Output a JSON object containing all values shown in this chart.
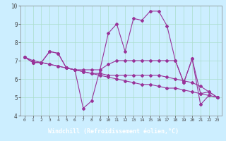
{
  "xlabel": "Windchill (Refroidissement éolien,°C)",
  "background_color": "#cceeff",
  "grid_color": "#aaddcc",
  "line_color": "#993399",
  "label_bg_color": "#7744aa",
  "xlim_min": -0.5,
  "xlim_max": 23.5,
  "ylim_min": 4,
  "ylim_max": 10,
  "yticks": [
    4,
    5,
    6,
    7,
    8,
    9,
    10
  ],
  "xticks": [
    0,
    1,
    2,
    3,
    4,
    5,
    6,
    7,
    8,
    9,
    10,
    11,
    12,
    13,
    14,
    15,
    16,
    17,
    18,
    19,
    20,
    21,
    22,
    23
  ],
  "series": [
    [
      7.2,
      6.9,
      6.9,
      7.5,
      7.4,
      6.6,
      6.5,
      4.4,
      4.8,
      6.5,
      8.5,
      9.0,
      7.5,
      9.3,
      9.2,
      9.7,
      9.7,
      8.9,
      7.0,
      5.8,
      7.1,
      4.6,
      5.1,
      5.0
    ],
    [
      7.2,
      6.9,
      6.9,
      7.5,
      7.4,
      6.6,
      6.5,
      6.5,
      6.5,
      6.5,
      6.8,
      7.0,
      7.0,
      7.0,
      7.0,
      7.0,
      7.0,
      7.0,
      7.0,
      5.8,
      7.1,
      5.2,
      5.3,
      5.0
    ],
    [
      7.2,
      6.9,
      6.9,
      6.8,
      6.7,
      6.6,
      6.5,
      6.4,
      6.3,
      6.2,
      6.1,
      6.0,
      5.9,
      5.8,
      5.7,
      5.7,
      5.6,
      5.5,
      5.5,
      5.4,
      5.3,
      5.2,
      5.1,
      5.0
    ],
    [
      7.2,
      7.0,
      6.9,
      6.8,
      6.7,
      6.6,
      6.5,
      6.4,
      6.3,
      6.3,
      6.2,
      6.2,
      6.2,
      6.2,
      6.2,
      6.2,
      6.2,
      6.1,
      6.0,
      5.9,
      5.8,
      5.6,
      5.3,
      5.0
    ]
  ]
}
